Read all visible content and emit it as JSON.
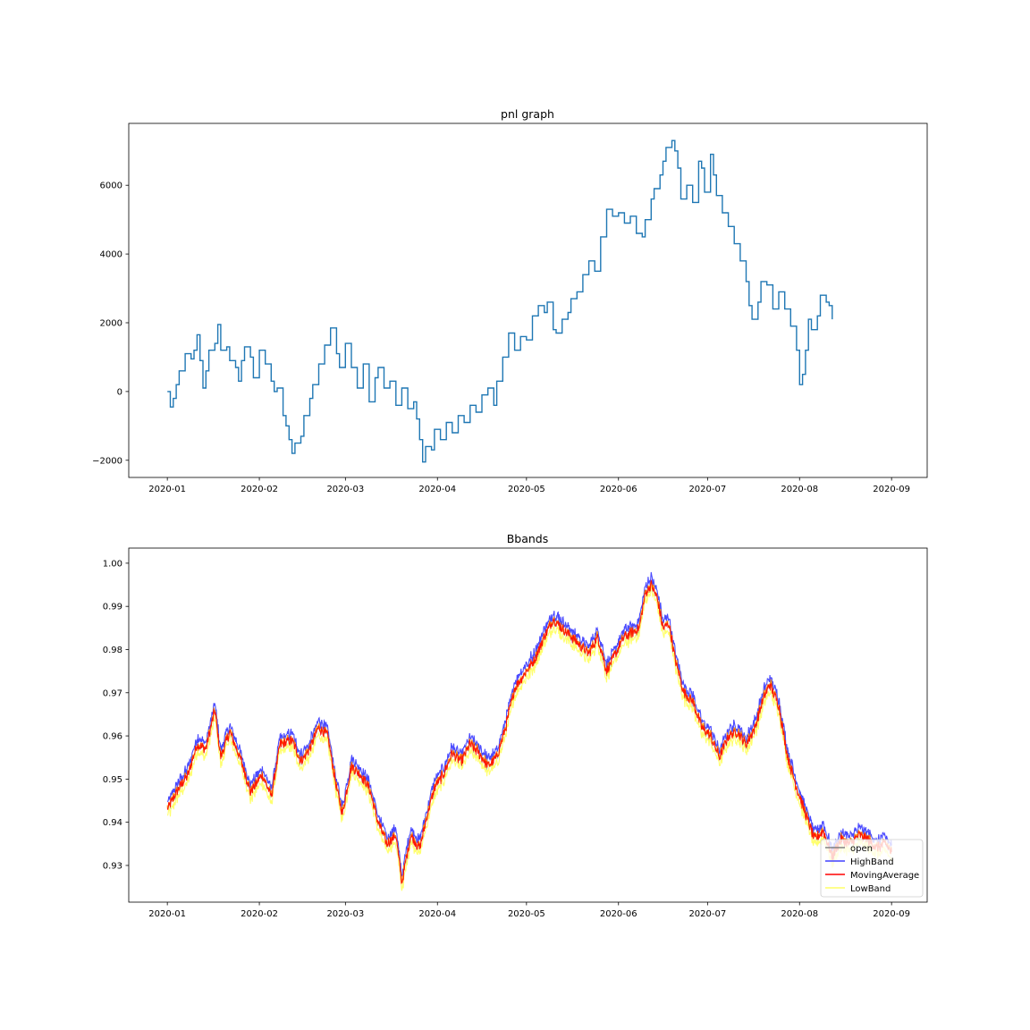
{
  "chart_data": [
    {
      "type": "line",
      "title": "pnl graph",
      "xlabel": "",
      "ylabel": "",
      "x_ticks": [
        "2020-01",
        "2020-02",
        "2020-03",
        "2020-04",
        "2020-05",
        "2020-06",
        "2020-07",
        "2020-08",
        "2020-09"
      ],
      "y_ticks": [
        "−2000",
        "0",
        "2000",
        "4000",
        "6000"
      ],
      "xlim": [
        "2019-12-19",
        "2020-09-13"
      ],
      "ylim": [
        -2500,
        7800
      ],
      "grid": false,
      "series": [
        {
          "color": "#1f77b4",
          "step": true,
          "points": [
            [
              "2020-01-01",
              0
            ],
            [
              "2020-01-02",
              -450
            ],
            [
              "2020-01-03",
              -200
            ],
            [
              "2020-01-04",
              200
            ],
            [
              "2020-01-05",
              600
            ],
            [
              "2020-01-07",
              1100
            ],
            [
              "2020-01-09",
              950
            ],
            [
              "2020-01-10",
              1200
            ],
            [
              "2020-01-11",
              1650
            ],
            [
              "2020-01-12",
              900
            ],
            [
              "2020-01-13",
              100
            ],
            [
              "2020-01-14",
              600
            ],
            [
              "2020-01-15",
              1200
            ],
            [
              "2020-01-17",
              1400
            ],
            [
              "2020-01-18",
              1950
            ],
            [
              "2020-01-19",
              1200
            ],
            [
              "2020-01-21",
              1300
            ],
            [
              "2020-01-22",
              900
            ],
            [
              "2020-01-24",
              700
            ],
            [
              "2020-01-25",
              300
            ],
            [
              "2020-01-26",
              900
            ],
            [
              "2020-01-27",
              1300
            ],
            [
              "2020-01-29",
              1000
            ],
            [
              "2020-01-30",
              400
            ],
            [
              "2020-02-01",
              1200
            ],
            [
              "2020-02-03",
              800
            ],
            [
              "2020-02-05",
              300
            ],
            [
              "2020-02-06",
              0
            ],
            [
              "2020-02-07",
              100
            ],
            [
              "2020-02-09",
              -700
            ],
            [
              "2020-02-10",
              -1000
            ],
            [
              "2020-02-11",
              -1400
            ],
            [
              "2020-02-12",
              -1800
            ],
            [
              "2020-02-13",
              -1500
            ],
            [
              "2020-02-15",
              -1300
            ],
            [
              "2020-02-16",
              -700
            ],
            [
              "2020-02-18",
              -200
            ],
            [
              "2020-02-19",
              200
            ],
            [
              "2020-02-21",
              800
            ],
            [
              "2020-02-23",
              1350
            ],
            [
              "2020-02-25",
              1850
            ],
            [
              "2020-02-27",
              1100
            ],
            [
              "2020-02-28",
              700
            ],
            [
              "2020-03-01",
              1400
            ],
            [
              "2020-03-03",
              700
            ],
            [
              "2020-03-05",
              100
            ],
            [
              "2020-03-07",
              800
            ],
            [
              "2020-03-09",
              -300
            ],
            [
              "2020-03-11",
              400
            ],
            [
              "2020-03-12",
              700
            ],
            [
              "2020-03-14",
              100
            ],
            [
              "2020-03-16",
              300
            ],
            [
              "2020-03-18",
              -400
            ],
            [
              "2020-03-20",
              100
            ],
            [
              "2020-03-22",
              -500
            ],
            [
              "2020-03-24",
              -300
            ],
            [
              "2020-03-25",
              -800
            ],
            [
              "2020-03-26",
              -1400
            ],
            [
              "2020-03-27",
              -2050
            ],
            [
              "2020-03-28",
              -1600
            ],
            [
              "2020-03-30",
              -1700
            ],
            [
              "2020-03-31",
              -1100
            ],
            [
              "2020-04-02",
              -1400
            ],
            [
              "2020-04-04",
              -900
            ],
            [
              "2020-04-06",
              -1200
            ],
            [
              "2020-04-08",
              -700
            ],
            [
              "2020-04-10",
              -900
            ],
            [
              "2020-04-12",
              -400
            ],
            [
              "2020-04-14",
              -600
            ],
            [
              "2020-04-16",
              -100
            ],
            [
              "2020-04-18",
              100
            ],
            [
              "2020-04-20",
              -400
            ],
            [
              "2020-04-21",
              300
            ],
            [
              "2020-04-23",
              1000
            ],
            [
              "2020-04-25",
              1700
            ],
            [
              "2020-04-27",
              1200
            ],
            [
              "2020-04-29",
              1600
            ],
            [
              "2020-05-01",
              1500
            ],
            [
              "2020-05-03",
              2200
            ],
            [
              "2020-05-05",
              2500
            ],
            [
              "2020-05-07",
              2300
            ],
            [
              "2020-05-08",
              2600
            ],
            [
              "2020-05-10",
              1800
            ],
            [
              "2020-05-11",
              1700
            ],
            [
              "2020-05-13",
              2100
            ],
            [
              "2020-05-15",
              2300
            ],
            [
              "2020-05-16",
              2700
            ],
            [
              "2020-05-18",
              2900
            ],
            [
              "2020-05-20",
              3400
            ],
            [
              "2020-05-22",
              3800
            ],
            [
              "2020-05-24",
              3500
            ],
            [
              "2020-05-26",
              4500
            ],
            [
              "2020-05-28",
              5300
            ],
            [
              "2020-05-30",
              5100
            ],
            [
              "2020-06-01",
              5200
            ],
            [
              "2020-06-03",
              4900
            ],
            [
              "2020-06-05",
              5100
            ],
            [
              "2020-06-07",
              4600
            ],
            [
              "2020-06-09",
              4500
            ],
            [
              "2020-06-10",
              5000
            ],
            [
              "2020-06-12",
              5600
            ],
            [
              "2020-06-13",
              5900
            ],
            [
              "2020-06-15",
              6300
            ],
            [
              "2020-06-16",
              6700
            ],
            [
              "2020-06-17",
              7100
            ],
            [
              "2020-06-19",
              7300
            ],
            [
              "2020-06-20",
              7000
            ],
            [
              "2020-06-21",
              6500
            ],
            [
              "2020-06-22",
              5600
            ],
            [
              "2020-06-24",
              6000
            ],
            [
              "2020-06-26",
              5500
            ],
            [
              "2020-06-28",
              6700
            ],
            [
              "2020-06-29",
              6500
            ],
            [
              "2020-06-30",
              5800
            ],
            [
              "2020-07-02",
              6900
            ],
            [
              "2020-07-03",
              6300
            ],
            [
              "2020-07-04",
              5700
            ],
            [
              "2020-07-06",
              5200
            ],
            [
              "2020-07-08",
              4800
            ],
            [
              "2020-07-10",
              4300
            ],
            [
              "2020-07-12",
              3800
            ],
            [
              "2020-07-14",
              3200
            ],
            [
              "2020-07-15",
              2500
            ],
            [
              "2020-07-16",
              2100
            ],
            [
              "2020-07-18",
              2600
            ],
            [
              "2020-07-19",
              3200
            ],
            [
              "2020-07-21",
              3100
            ],
            [
              "2020-07-23",
              2400
            ],
            [
              "2020-07-25",
              2900
            ],
            [
              "2020-07-27",
              2400
            ],
            [
              "2020-07-29",
              1900
            ],
            [
              "2020-07-31",
              1200
            ],
            [
              "2020-08-01",
              200
            ],
            [
              "2020-08-02",
              500
            ],
            [
              "2020-08-03",
              1200
            ],
            [
              "2020-08-04",
              2100
            ],
            [
              "2020-08-05",
              1800
            ],
            [
              "2020-08-07",
              2200
            ],
            [
              "2020-08-08",
              2800
            ],
            [
              "2020-08-10",
              2600
            ],
            [
              "2020-08-11",
              2500
            ],
            [
              "2020-08-12",
              2100
            ]
          ]
        }
      ]
    },
    {
      "type": "line",
      "title": "Bbands",
      "xlabel": "",
      "ylabel": "",
      "x_ticks": [
        "2020-01",
        "2020-02",
        "2020-03",
        "2020-04",
        "2020-05",
        "2020-06",
        "2020-07",
        "2020-08",
        "2020-09"
      ],
      "y_ticks": [
        "0.93",
        "0.94",
        "0.95",
        "0.96",
        "0.97",
        "0.98",
        "0.99",
        "1.00"
      ],
      "xlim": [
        "2019-12-19",
        "2020-09-13"
      ],
      "ylim": [
        0.9215,
        1.0035
      ],
      "grid": false,
      "legend_position": "lower-right",
      "band_spread": 0.0016,
      "series": [
        {
          "name": "open",
          "color": "#808080"
        },
        {
          "name": "HighBand",
          "color": "#4040ff"
        },
        {
          "name": "MovingAverage",
          "color": "#ff0000"
        },
        {
          "name": "LowBand",
          "color": "#ffff66"
        }
      ],
      "moving_average": [
        [
          "2020-01-01",
          0.943
        ],
        [
          "2020-01-05",
          0.948
        ],
        [
          "2020-01-08",
          0.951
        ],
        [
          "2020-01-11",
          0.958
        ],
        [
          "2020-01-14",
          0.957
        ],
        [
          "2020-01-17",
          0.966
        ],
        [
          "2020-01-19",
          0.955
        ],
        [
          "2020-01-22",
          0.961
        ],
        [
          "2020-01-26",
          0.954
        ],
        [
          "2020-01-29",
          0.947
        ],
        [
          "2020-02-02",
          0.951
        ],
        [
          "2020-02-05",
          0.946
        ],
        [
          "2020-02-08",
          0.958
        ],
        [
          "2020-02-12",
          0.959
        ],
        [
          "2020-02-15",
          0.954
        ],
        [
          "2020-02-18",
          0.957
        ],
        [
          "2020-02-21",
          0.962
        ],
        [
          "2020-02-24",
          0.96
        ],
        [
          "2020-02-27",
          0.948
        ],
        [
          "2020-02-29",
          0.942
        ],
        [
          "2020-03-03",
          0.953
        ],
        [
          "2020-03-06",
          0.951
        ],
        [
          "2020-03-09",
          0.948
        ],
        [
          "2020-03-12",
          0.94
        ],
        [
          "2020-03-15",
          0.935
        ],
        [
          "2020-03-18",
          0.937
        ],
        [
          "2020-03-20",
          0.926
        ],
        [
          "2020-03-23",
          0.937
        ],
        [
          "2020-03-26",
          0.934
        ],
        [
          "2020-03-28",
          0.94
        ],
        [
          "2020-03-31",
          0.948
        ],
        [
          "2020-04-03",
          0.951
        ],
        [
          "2020-04-06",
          0.956
        ],
        [
          "2020-04-09",
          0.954
        ],
        [
          "2020-04-12",
          0.958
        ],
        [
          "2020-04-15",
          0.956
        ],
        [
          "2020-04-18",
          0.953
        ],
        [
          "2020-04-21",
          0.955
        ],
        [
          "2020-04-24",
          0.962
        ],
        [
          "2020-04-27",
          0.971
        ],
        [
          "2020-05-01",
          0.975
        ],
        [
          "2020-05-04",
          0.978
        ],
        [
          "2020-05-07",
          0.983
        ],
        [
          "2020-05-10",
          0.987
        ],
        [
          "2020-05-13",
          0.985
        ],
        [
          "2020-05-16",
          0.983
        ],
        [
          "2020-05-19",
          0.981
        ],
        [
          "2020-05-22",
          0.979
        ],
        [
          "2020-05-25",
          0.983
        ],
        [
          "2020-05-28",
          0.975
        ],
        [
          "2020-05-31",
          0.979
        ],
        [
          "2020-06-03",
          0.983
        ],
        [
          "2020-06-06",
          0.984
        ],
        [
          "2020-06-08",
          0.985
        ],
        [
          "2020-06-10",
          0.993
        ],
        [
          "2020-06-12",
          0.995
        ],
        [
          "2020-06-14",
          0.992
        ],
        [
          "2020-06-16",
          0.985
        ],
        [
          "2020-06-18",
          0.986
        ],
        [
          "2020-06-20",
          0.978
        ],
        [
          "2020-06-23",
          0.97
        ],
        [
          "2020-06-26",
          0.968
        ],
        [
          "2020-06-29",
          0.962
        ],
        [
          "2020-07-02",
          0.96
        ],
        [
          "2020-07-05",
          0.955
        ],
        [
          "2020-07-08",
          0.96
        ],
        [
          "2020-07-11",
          0.961
        ],
        [
          "2020-07-14",
          0.958
        ],
        [
          "2020-07-17",
          0.962
        ],
        [
          "2020-07-20",
          0.969
        ],
        [
          "2020-07-22",
          0.972
        ],
        [
          "2020-07-25",
          0.967
        ],
        [
          "2020-07-28",
          0.955
        ],
        [
          "2020-07-31",
          0.948
        ],
        [
          "2020-08-03",
          0.942
        ],
        [
          "2020-08-06",
          0.936
        ],
        [
          "2020-08-09",
          0.938
        ],
        [
          "2020-08-12",
          0.932
        ],
        [
          "2020-08-15",
          0.936
        ],
        [
          "2020-08-18",
          0.935
        ],
        [
          "2020-08-21",
          0.937
        ],
        [
          "2020-08-24",
          0.936
        ],
        [
          "2020-08-27",
          0.934
        ],
        [
          "2020-08-30",
          0.935
        ],
        [
          "2020-09-01",
          0.933
        ]
      ]
    }
  ]
}
